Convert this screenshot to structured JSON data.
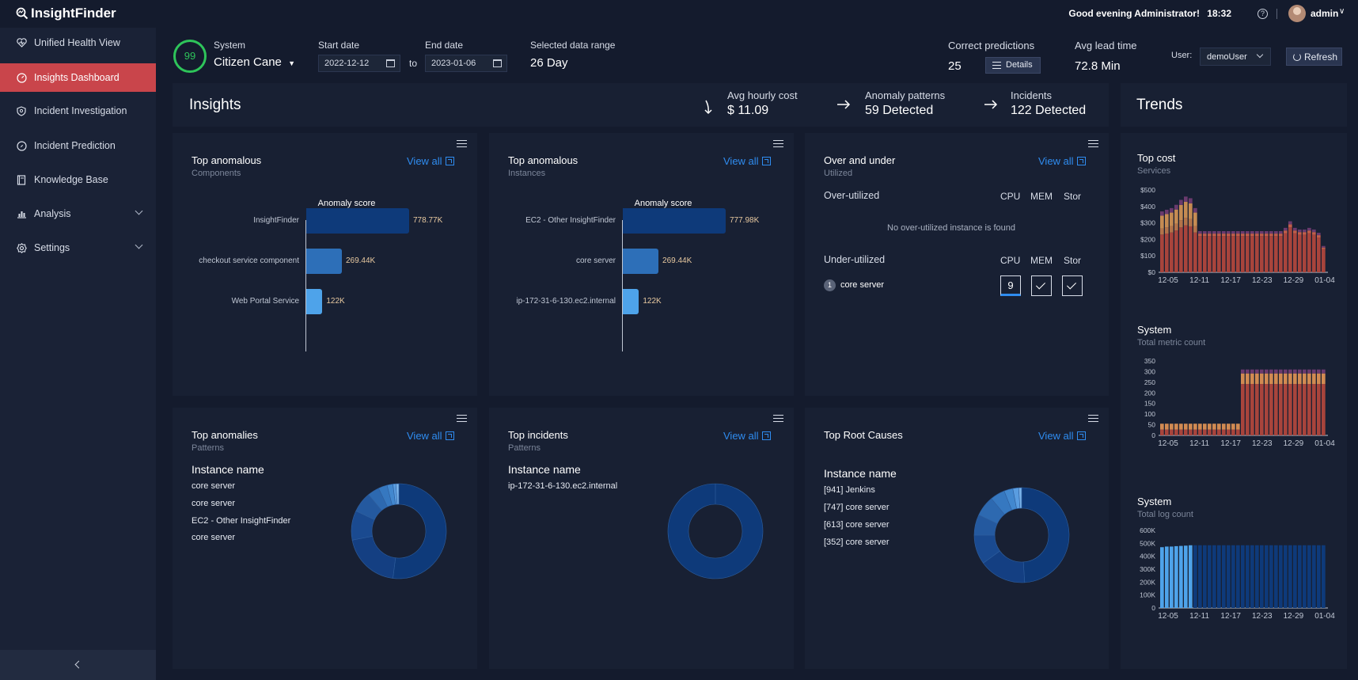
{
  "app": {
    "brand": "InsightFinder",
    "greeting": "Good evening Administrator!",
    "time": "18:32",
    "user": "admin"
  },
  "sidebar": {
    "items": [
      {
        "label": "Unified Health View",
        "icon": "heart-pulse-icon"
      },
      {
        "label": "Insights Dashboard",
        "icon": "dashboard-gauge-icon",
        "active": true
      },
      {
        "label": "Incident Investigation",
        "icon": "shield-icon"
      },
      {
        "label": "Incident Prediction",
        "icon": "compass-icon"
      },
      {
        "label": "Knowledge Base",
        "icon": "book-icon"
      },
      {
        "label": "Analysis",
        "icon": "bar-chart-icon",
        "expandable": true
      },
      {
        "label": "Settings",
        "icon": "gear-icon",
        "expandable": true
      }
    ]
  },
  "header": {
    "health_score": "99",
    "system_label": "System",
    "system_value": "Citizen Cane",
    "start_label": "Start date",
    "start_value": "2022-12-12",
    "to_label": "to",
    "end_label": "End date",
    "end_value": "2023-01-06",
    "range_label": "Selected data range",
    "range_value": "26 Day",
    "correct_label": "Correct predictions",
    "correct_value": "25",
    "details_label": "Details",
    "lead_label": "Avg lead time",
    "lead_value": "72.8 Min",
    "user_label": "User:",
    "user_value": "demoUser",
    "refresh_label": "Refresh"
  },
  "insights": {
    "title": "Insights",
    "cost_label": "Avg hourly cost",
    "cost_value": "$ 11.09",
    "patterns_label": "Anomaly patterns",
    "patterns_value": "59 Detected",
    "incidents_label": "Incidents",
    "incidents_value": "122 Detected"
  },
  "trends_title": "Trends",
  "view_all": "View all",
  "card_components": {
    "title": "Top anomalous",
    "sub": "Components",
    "chart_title": "Anomaly score",
    "labels": [
      "InsightFinder",
      "checkout service component",
      "Web Portal Service"
    ],
    "value_labels": [
      "778.77K",
      "269.44K",
      "122K"
    ]
  },
  "card_instances": {
    "title": "Top anomalous",
    "sub": "Instances",
    "chart_title": "Anomaly score",
    "labels": [
      "EC2 - Other InsightFinder",
      "core server",
      "ip-172-31-6-130.ec2.internal"
    ],
    "value_labels": [
      "777.98K",
      "269.44K",
      "122K"
    ]
  },
  "card_util": {
    "title": "Over and under",
    "sub": "Utilized",
    "over_label": "Over-utilized",
    "cols": [
      "CPU",
      "MEM",
      "Stor"
    ],
    "empty_msg": "No over-utilized instance is found",
    "under_label": "Under-utilized",
    "row_index": "1",
    "row_name": "core server",
    "cpu_value": "9"
  },
  "card_anomalies": {
    "title": "Top anomalies",
    "sub": "Patterns",
    "head": "Instance name",
    "items": [
      "core server",
      "core server",
      "EC2 - Other InsightFinder",
      "core server"
    ]
  },
  "card_incidents": {
    "title": "Top incidents",
    "sub": "Patterns",
    "head": "Instance name",
    "items": [
      "ip-172-31-6-130.ec2.internal"
    ]
  },
  "card_rootcauses": {
    "title": "Top Root Causes",
    "head": "Instance name",
    "items": [
      "[941] Jenkins",
      "[747] core server",
      "[613] core server",
      "[352] core server"
    ]
  },
  "trend_cost": {
    "title": "Top cost",
    "sub": "Services"
  },
  "trend_metric": {
    "title": "System",
    "sub": "Total metric count"
  },
  "trend_log": {
    "title": "System",
    "sub": "Total log count"
  },
  "chart_data": [
    {
      "type": "bar",
      "title": "Anomaly score",
      "orientation": "horizontal",
      "categories": [
        "InsightFinder",
        "checkout service component",
        "Web Portal Service"
      ],
      "values": [
        778770,
        269440,
        122000
      ]
    },
    {
      "type": "bar",
      "title": "Anomaly score",
      "orientation": "horizontal",
      "categories": [
        "EC2 - Other InsightFinder",
        "core server",
        "ip-172-31-6-130.ec2.internal"
      ],
      "values": [
        777980,
        269440,
        122000
      ]
    },
    {
      "type": "pie",
      "donut": true,
      "values": [
        0.52,
        0.2,
        0.1,
        0.07,
        0.04,
        0.03,
        0.02,
        0.01,
        0.01
      ]
    },
    {
      "type": "pie",
      "donut": true,
      "values": [
        1
      ]
    },
    {
      "type": "pie",
      "donut": true,
      "values": [
        0.49,
        0.16,
        0.1,
        0.07,
        0.07,
        0.05,
        0.03,
        0.02,
        0.01
      ]
    },
    {
      "type": "bar",
      "stacked": true,
      "title": "Top cost",
      "x_ticks": [
        "12-05",
        "12-11",
        "12-17",
        "12-23",
        "12-29",
        "01-04"
      ],
      "y_ticks": [
        "$0",
        "$100",
        "$200",
        "$300",
        "$400",
        "$500"
      ],
      "ylim": [
        0,
        500
      ],
      "totals": [
        370,
        380,
        390,
        410,
        440,
        460,
        450,
        390,
        250,
        250,
        250,
        250,
        250,
        250,
        250,
        250,
        250,
        250,
        250,
        250,
        250,
        250,
        250,
        250,
        250,
        250,
        270,
        310,
        270,
        260,
        260,
        270,
        260,
        240,
        160
      ]
    },
    {
      "type": "bar",
      "stacked": true,
      "title": "Total metric count",
      "x_ticks": [
        "12-05",
        "12-11",
        "12-17",
        "12-23",
        "12-29",
        "01-04"
      ],
      "y_ticks": [
        "0",
        "50",
        "100",
        "150",
        "200",
        "250",
        "300",
        "350"
      ],
      "ylim": [
        0,
        350
      ],
      "totals": [
        55,
        55,
        55,
        55,
        55,
        55,
        55,
        55,
        55,
        55,
        55,
        55,
        55,
        55,
        55,
        55,
        55,
        310,
        310,
        310,
        310,
        310,
        310,
        310,
        310,
        310,
        310,
        310,
        310,
        310,
        310,
        310,
        310,
        310,
        310
      ]
    },
    {
      "type": "bar",
      "title": "Total log count",
      "x_ticks": [
        "12-05",
        "12-11",
        "12-17",
        "12-23",
        "12-29",
        "01-04"
      ],
      "y_ticks": [
        "0",
        "100K",
        "200K",
        "300K",
        "400K",
        "500K",
        "600K"
      ],
      "ylim": [
        0,
        600000
      ],
      "values": [
        470000,
        475000,
        475000,
        478000,
        480000,
        482000,
        485000,
        485000,
        485000,
        485000,
        485000,
        485000,
        485000,
        485000,
        485000,
        485000,
        485000,
        485000,
        485000,
        485000,
        485000,
        485000,
        485000,
        485000,
        485000,
        485000,
        485000,
        485000,
        485000,
        485000,
        485000,
        485000,
        485000,
        485000,
        485000
      ]
    }
  ],
  "colors": {
    "accent_red": "#c9454b",
    "link_blue": "#2f8cf0",
    "health_green": "#2ec45a",
    "bar_dark": "#0e3a7a",
    "bar_mid": "#2d6fb8",
    "bar_light": "#4ea3ea"
  }
}
